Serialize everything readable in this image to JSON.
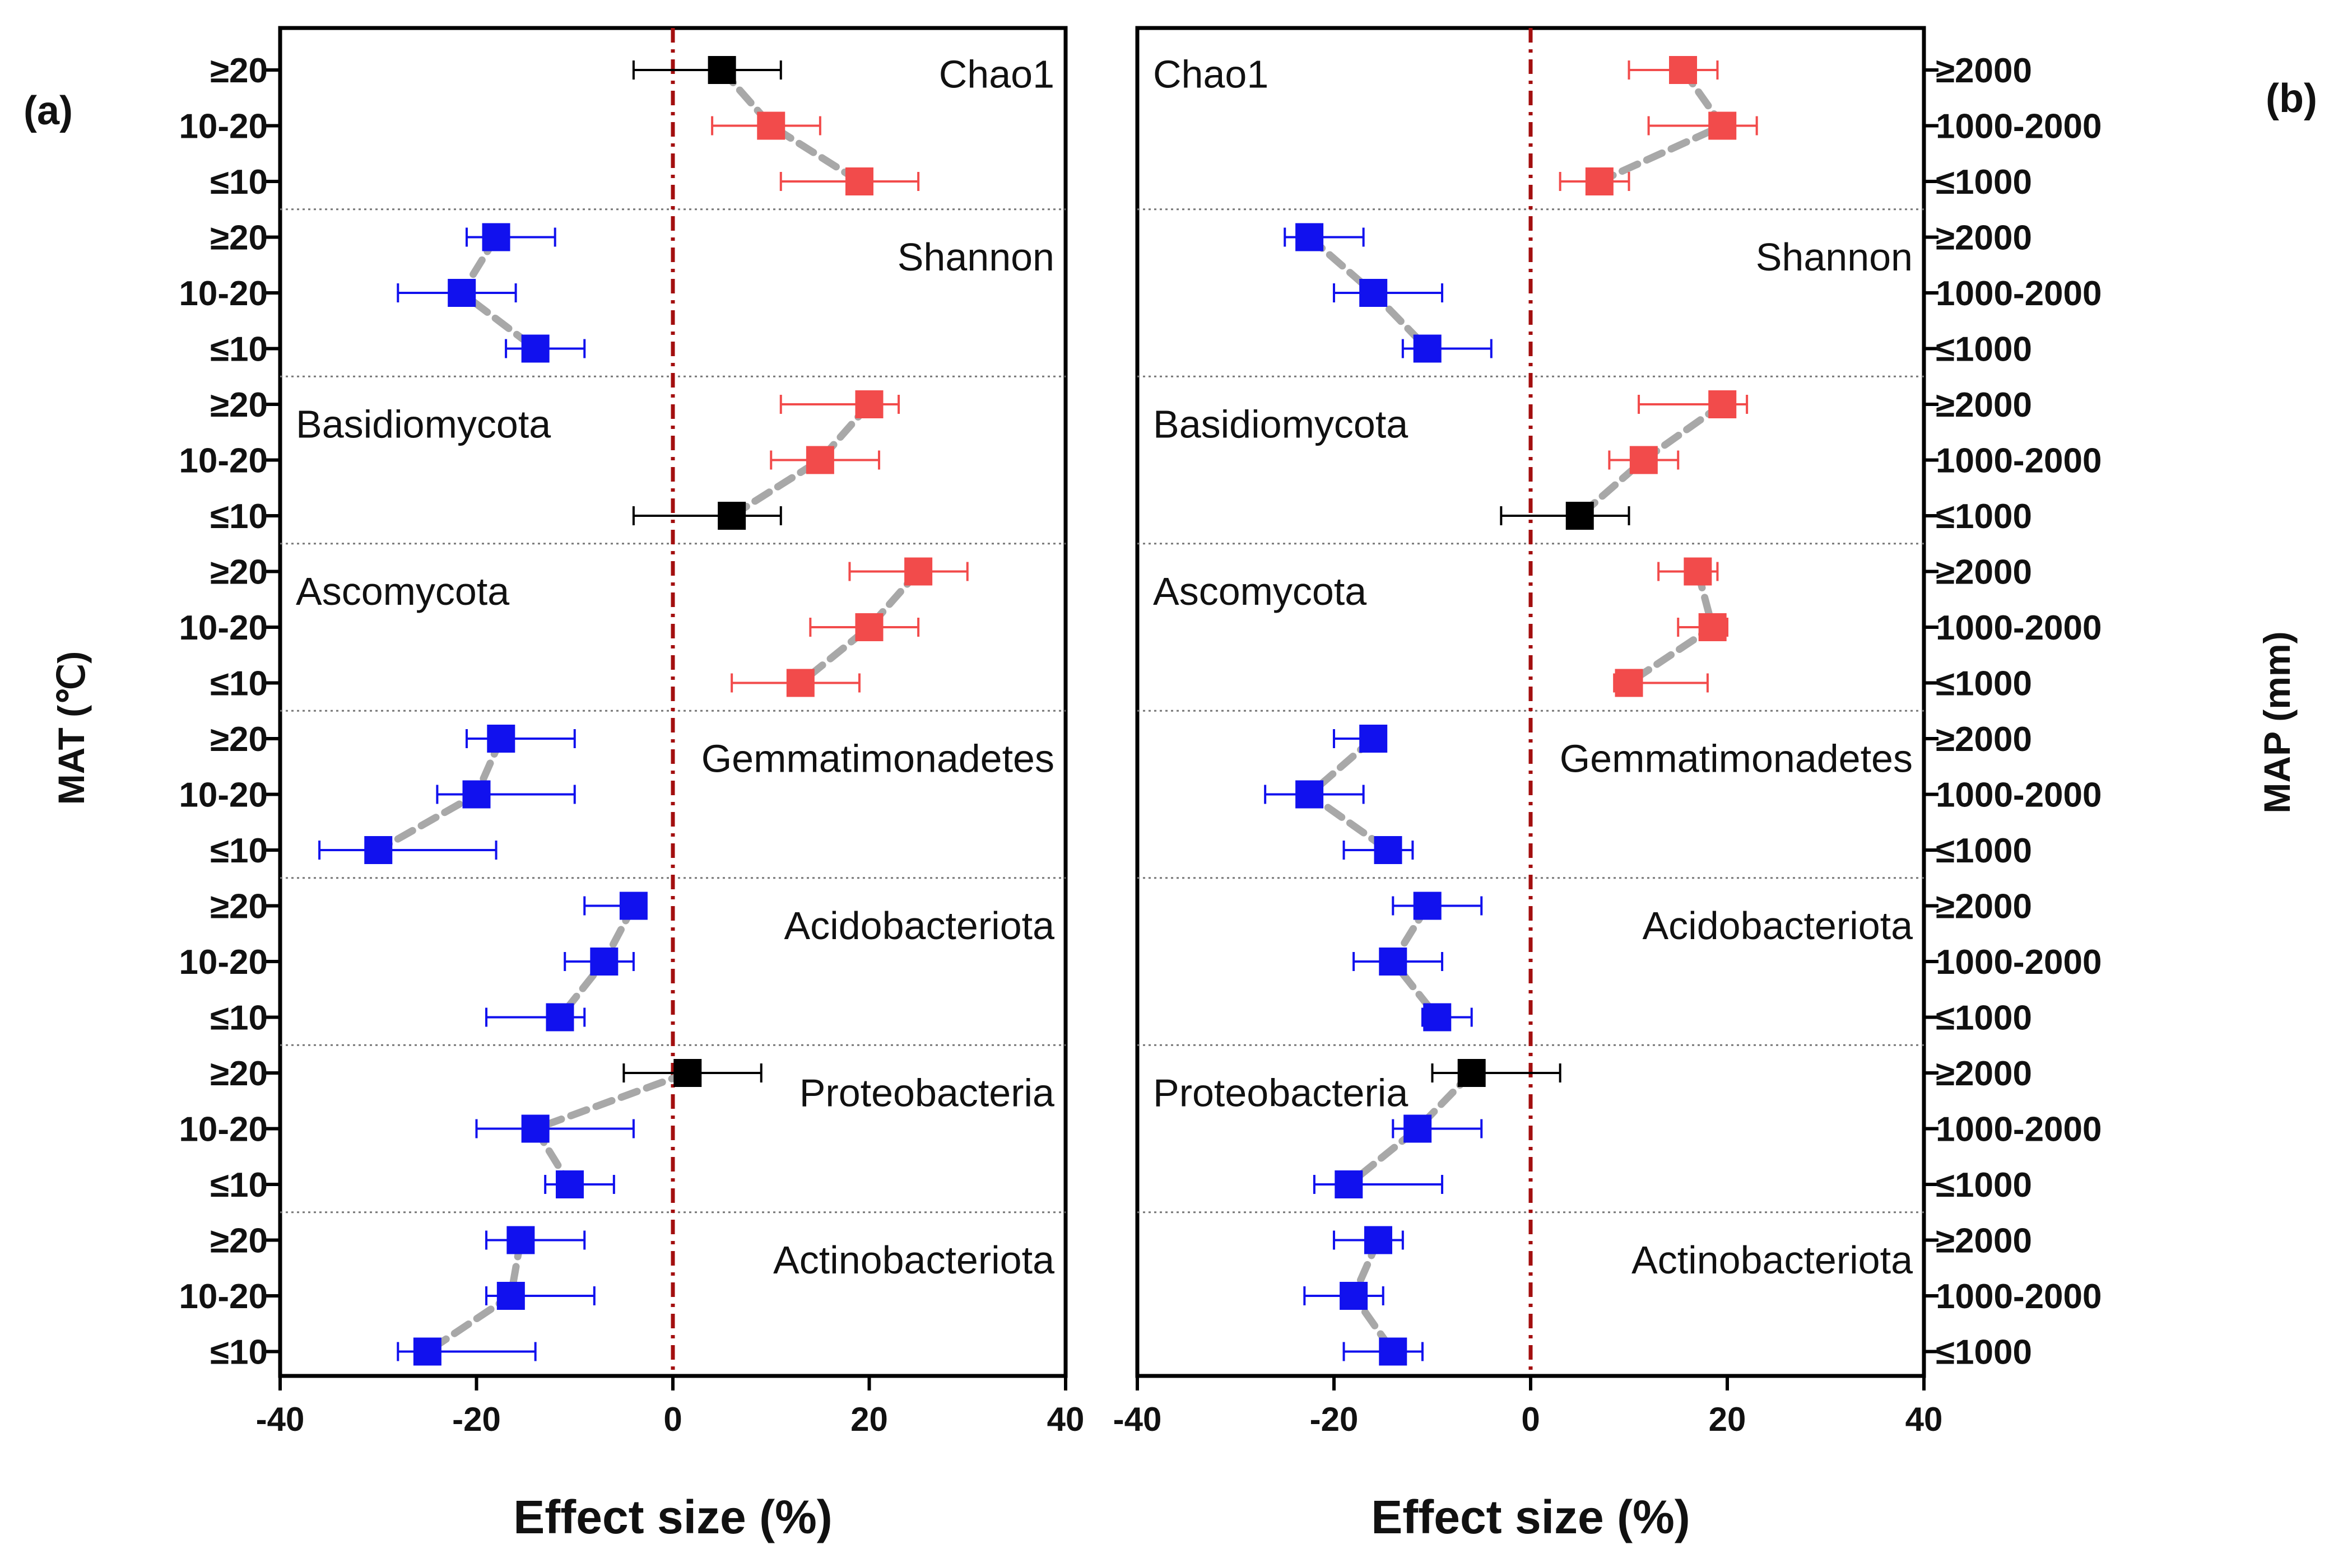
{
  "chart_data": [
    {
      "type": "scatter",
      "panel_label": "(a)",
      "xlabel": "Effect size (%)",
      "ylabel": "MAT (℃)",
      "xlim": [
        -40,
        40
      ],
      "xticks": [
        "-40",
        "-20",
        "0",
        "20",
        "40"
      ],
      "reference_line": 0,
      "levels": [
        "≥20",
        "10-20",
        "≤10"
      ],
      "groups": [
        {
          "name": "Chao1",
          "label_pos": "right",
          "points": [
            {
              "level": "≥20",
              "mean": 5,
              "lo": -4,
              "hi": 11,
              "color": "black"
            },
            {
              "level": "10-20",
              "mean": 10,
              "lo": 4,
              "hi": 15,
              "color": "red"
            },
            {
              "level": "≤10",
              "mean": 19,
              "lo": 11,
              "hi": 25,
              "color": "red"
            }
          ]
        },
        {
          "name": "Shannon",
          "label_pos": "right",
          "points": [
            {
              "level": "≥20",
              "mean": -18,
              "lo": -21,
              "hi": -12,
              "color": "blue"
            },
            {
              "level": "10-20",
              "mean": -21.5,
              "lo": -28,
              "hi": -16,
              "color": "blue"
            },
            {
              "level": "≤10",
              "mean": -14,
              "lo": -17,
              "hi": -9,
              "color": "blue"
            }
          ]
        },
        {
          "name": "Basidiomycota",
          "label_pos": "left",
          "points": [
            {
              "level": "≥20",
              "mean": 20,
              "lo": 11,
              "hi": 23,
              "color": "red"
            },
            {
              "level": "10-20",
              "mean": 15,
              "lo": 10,
              "hi": 21,
              "color": "red"
            },
            {
              "level": "≤10",
              "mean": 6,
              "lo": -4,
              "hi": 11,
              "color": "black"
            }
          ]
        },
        {
          "name": "Ascomycota",
          "label_pos": "left",
          "points": [
            {
              "level": "≥20",
              "mean": 25,
              "lo": 18,
              "hi": 30,
              "color": "red"
            },
            {
              "level": "10-20",
              "mean": 20,
              "lo": 14,
              "hi": 25,
              "color": "red"
            },
            {
              "level": "≤10",
              "mean": 13,
              "lo": 6,
              "hi": 19,
              "color": "red"
            }
          ]
        },
        {
          "name": "Gemmatimonadetes",
          "label_pos": "right",
          "points": [
            {
              "level": "≥20",
              "mean": -17.5,
              "lo": -21,
              "hi": -10,
              "color": "blue"
            },
            {
              "level": "10-20",
              "mean": -20,
              "lo": -24,
              "hi": -10,
              "color": "blue"
            },
            {
              "level": "≤10",
              "mean": -30,
              "lo": -36,
              "hi": -18,
              "color": "blue"
            }
          ]
        },
        {
          "name": "Acidobacteriota",
          "label_pos": "right",
          "points": [
            {
              "level": "≥20",
              "mean": -4,
              "lo": -9,
              "hi": -3,
              "color": "blue"
            },
            {
              "level": "10-20",
              "mean": -7,
              "lo": -11,
              "hi": -4,
              "color": "blue"
            },
            {
              "level": "≤10",
              "mean": -11.5,
              "lo": -19,
              "hi": -9,
              "color": "blue"
            }
          ]
        },
        {
          "name": "Proteobacteria",
          "label_pos": "right",
          "points": [
            {
              "level": "≥20",
              "mean": 1.5,
              "lo": -5,
              "hi": 9,
              "color": "black"
            },
            {
              "level": "10-20",
              "mean": -14,
              "lo": -20,
              "hi": -4,
              "color": "blue"
            },
            {
              "level": "≤10",
              "mean": -10.5,
              "lo": -13,
              "hi": -6,
              "color": "blue"
            }
          ]
        },
        {
          "name": "Actinobacteriota",
          "label_pos": "right",
          "points": [
            {
              "level": "≥20",
              "mean": -15.5,
              "lo": -19,
              "hi": -9,
              "color": "blue"
            },
            {
              "level": "10-20",
              "mean": -16.5,
              "lo": -19,
              "hi": -8,
              "color": "blue"
            },
            {
              "level": "≤10",
              "mean": -25,
              "lo": -28,
              "hi": -14,
              "color": "blue"
            }
          ]
        }
      ]
    },
    {
      "type": "scatter",
      "panel_label": "(b)",
      "xlabel": "Effect size (%)",
      "ylabel": "MAP (mm)",
      "xlim": [
        -40,
        40
      ],
      "xticks": [
        "-40",
        "-20",
        "0",
        "20",
        "40"
      ],
      "reference_line": 0,
      "levels": [
        "≥2000",
        "1000-2000",
        "≤1000"
      ],
      "groups": [
        {
          "name": "Chao1",
          "label_pos": "left",
          "points": [
            {
              "level": "≥2000",
              "mean": 15.5,
              "lo": 10,
              "hi": 19,
              "color": "red"
            },
            {
              "level": "1000-2000",
              "mean": 19.5,
              "lo": 12,
              "hi": 23,
              "color": "red"
            },
            {
              "level": "≤1000",
              "mean": 7,
              "lo": 3,
              "hi": 10,
              "color": "red"
            }
          ]
        },
        {
          "name": "Shannon",
          "label_pos": "right",
          "points": [
            {
              "level": "≥2000",
              "mean": -22.5,
              "lo": -25,
              "hi": -17,
              "color": "blue"
            },
            {
              "level": "1000-2000",
              "mean": -16,
              "lo": -20,
              "hi": -9,
              "color": "blue"
            },
            {
              "level": "≤1000",
              "mean": -10.5,
              "lo": -13,
              "hi": -4,
              "color": "blue"
            }
          ]
        },
        {
          "name": "Basidiomycota",
          "label_pos": "left",
          "points": [
            {
              "level": "≥2000",
              "mean": 19.5,
              "lo": 11,
              "hi": 22,
              "color": "red"
            },
            {
              "level": "1000-2000",
              "mean": 11.5,
              "lo": 8,
              "hi": 15,
              "color": "red"
            },
            {
              "level": "≤1000",
              "mean": 5,
              "lo": -3,
              "hi": 10,
              "color": "black"
            }
          ]
        },
        {
          "name": "Ascomycota",
          "label_pos": "left",
          "points": [
            {
              "level": "≥2000",
              "mean": 17,
              "lo": 13,
              "hi": 19,
              "color": "red"
            },
            {
              "level": "1000-2000",
              "mean": 18.5,
              "lo": 15,
              "hi": 20,
              "color": "red"
            },
            {
              "level": "≤1000",
              "mean": 10,
              "lo": 8.5,
              "hi": 18,
              "color": "red"
            }
          ]
        },
        {
          "name": "Gemmatimonadetes",
          "label_pos": "right",
          "points": [
            {
              "level": "≥2000",
              "mean": -16,
              "lo": -20,
              "hi": -15,
              "color": "blue"
            },
            {
              "level": "1000-2000",
              "mean": -22.5,
              "lo": -27,
              "hi": -17,
              "color": "blue"
            },
            {
              "level": "≤1000",
              "mean": -14.5,
              "lo": -19,
              "hi": -12,
              "color": "blue"
            }
          ]
        },
        {
          "name": "Acidobacteriota",
          "label_pos": "right",
          "points": [
            {
              "level": "≥2000",
              "mean": -10.5,
              "lo": -14,
              "hi": -5,
              "color": "blue"
            },
            {
              "level": "1000-2000",
              "mean": -14,
              "lo": -18,
              "hi": -9,
              "color": "blue"
            },
            {
              "level": "≤1000",
              "mean": -9.5,
              "lo": -11,
              "hi": -6,
              "color": "blue"
            }
          ]
        },
        {
          "name": "Proteobacteria",
          "label_pos": "left",
          "points": [
            {
              "level": "≥2000",
              "mean": -6,
              "lo": -10,
              "hi": 3,
              "color": "black"
            },
            {
              "level": "1000-2000",
              "mean": -11.5,
              "lo": -14,
              "hi": -5,
              "color": "blue"
            },
            {
              "level": "≤1000",
              "mean": -18.5,
              "lo": -22,
              "hi": -9,
              "color": "blue"
            }
          ]
        },
        {
          "name": "Actinobacteriota",
          "label_pos": "right",
          "points": [
            {
              "level": "≥2000",
              "mean": -15.5,
              "lo": -20,
              "hi": -13,
              "color": "blue"
            },
            {
              "level": "1000-2000",
              "mean": -18,
              "lo": -23,
              "hi": -15,
              "color": "blue"
            },
            {
              "level": "≤1000",
              "mean": -14,
              "lo": -19,
              "hi": -11,
              "color": "blue"
            }
          ]
        }
      ]
    }
  ],
  "colors": {
    "red": "#f24b4b",
    "blue": "#1111ee",
    "black": "#000000",
    "reference_line": "#a30f0f",
    "connector": "#a8a8a8",
    "separator": "#777777"
  }
}
